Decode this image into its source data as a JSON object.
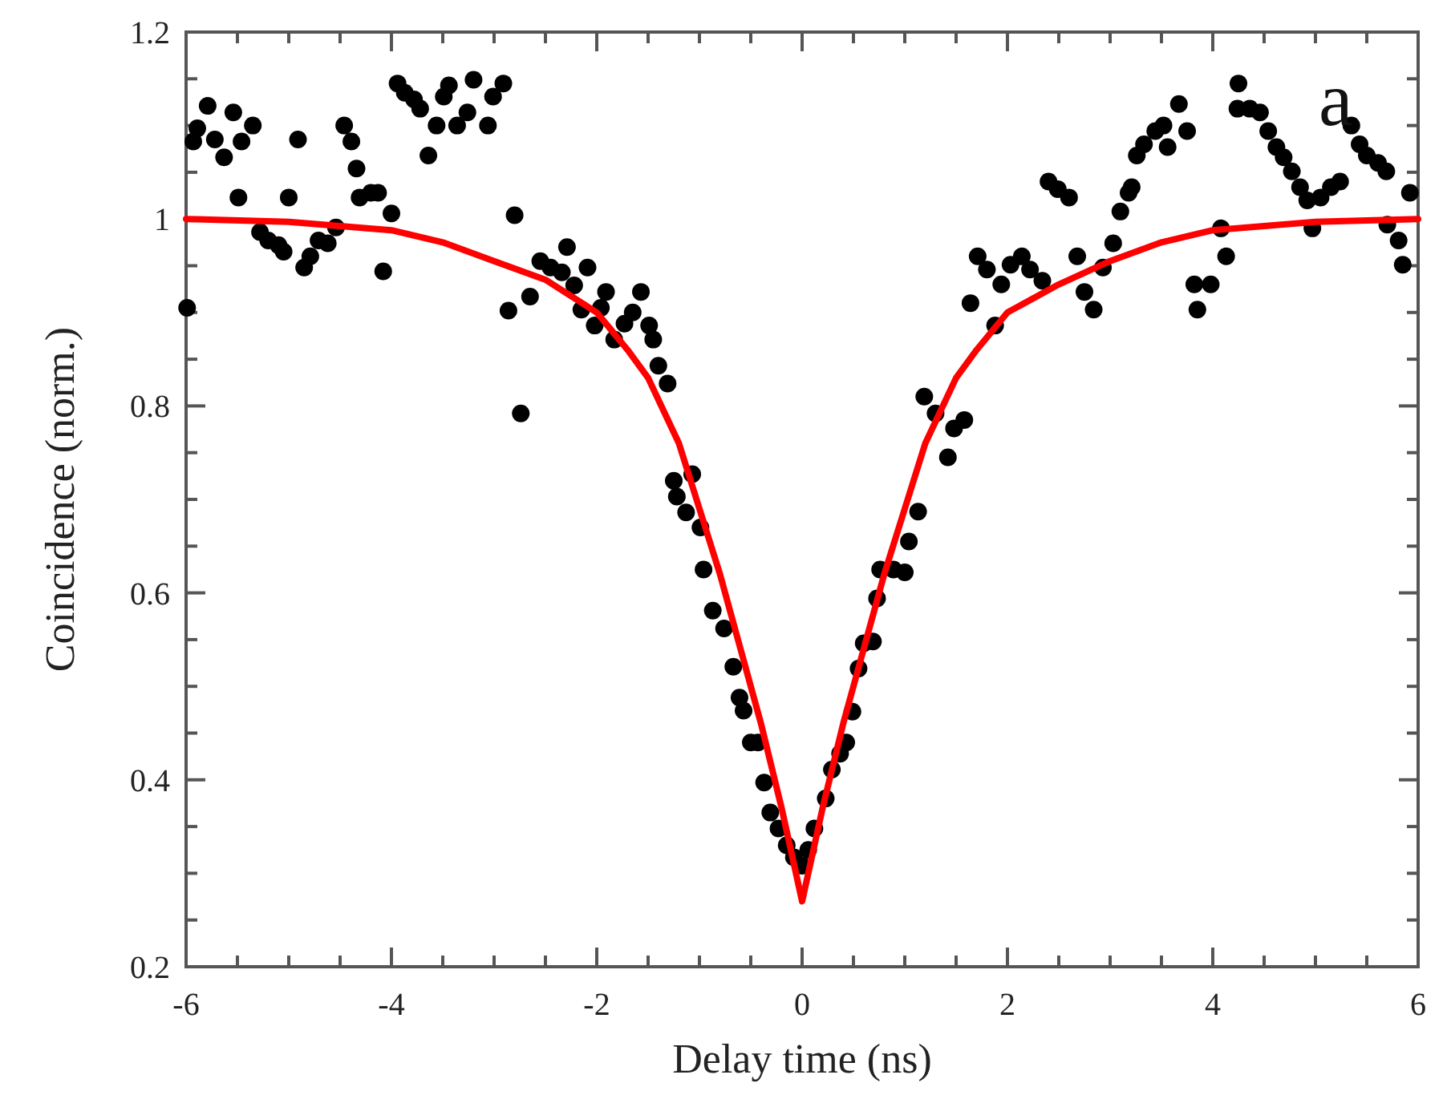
{
  "chart_data": {
    "type": "scatter",
    "xlabel": "Delay time (ns)",
    "ylabel": "Coincidence (norm.)",
    "xlim": [
      -6,
      6
    ],
    "xticks": [
      -6,
      -4,
      -2,
      0,
      2,
      4,
      6
    ],
    "ylim": [
      0.2,
      1.2
    ],
    "yticks": [
      0.2,
      0.4,
      0.6,
      0.8,
      1,
      1.2
    ],
    "grid": false,
    "marker": "circle",
    "annotations": [
      "a"
    ],
    "series": [
      {
        "color": "#000000",
        "x": [
          -5.99,
          -5.89,
          -5.93,
          -5.79,
          -5.72,
          -5.63,
          -5.54,
          -5.46,
          -5.35,
          -5.49,
          -5.28,
          -5.2,
          -5.1,
          -5.05,
          -5.0,
          -4.91,
          -4.85,
          -4.79,
          -4.71,
          -4.62,
          -4.54,
          -4.46,
          -4.39,
          -4.34,
          -4.31,
          -4.2,
          -4.13,
          -4.0,
          -4.08,
          -3.94,
          -3.87,
          -3.78,
          -3.72,
          -3.64,
          -3.56,
          -3.49,
          -3.44,
          -3.36,
          -3.26,
          -3.2,
          -3.06,
          -3.01,
          -2.91,
          -2.8,
          -2.86,
          -2.74,
          -2.65,
          -2.55,
          -2.45,
          -2.34,
          -2.29,
          -2.22,
          -2.15,
          -2.09,
          -2.02,
          -1.96,
          -1.91,
          -1.83,
          -1.73,
          -1.65,
          -1.57,
          -1.49,
          -1.45,
          -1.4,
          -1.31,
          -1.25,
          -1.07,
          -1.22,
          -1.13,
          -0.99,
          -0.96,
          -0.87,
          -0.76,
          -0.67,
          -0.61,
          -0.57,
          -0.5,
          -0.43,
          -0.37,
          -0.31,
          -0.23,
          -0.15,
          -0.08,
          0.0,
          0.06,
          0.12,
          0.23,
          0.29,
          0.37,
          0.43,
          0.49,
          0.55,
          0.6,
          0.69,
          0.73,
          0.76,
          0.89,
          1.0,
          1.04,
          1.13,
          1.19,
          1.3,
          1.42,
          1.48,
          1.58,
          1.64,
          1.71,
          1.8,
          1.88,
          1.94,
          2.03,
          2.14,
          2.22,
          2.34,
          2.4,
          2.49,
          2.6,
          2.68,
          2.75,
          2.84,
          2.93,
          3.03,
          3.1,
          3.18,
          3.21,
          3.26,
          3.33,
          3.44,
          3.52,
          3.56,
          3.67,
          3.75,
          3.85,
          3.82,
          3.98,
          4.08,
          4.13,
          4.25,
          4.24,
          4.36,
          4.46,
          4.54,
          4.62,
          4.69,
          4.77,
          4.85,
          4.92,
          4.97,
          5.05,
          5.15,
          5.24,
          5.35,
          5.43,
          5.5,
          5.61,
          5.69,
          5.92,
          5.7,
          5.81,
          5.85
        ],
        "values": [
          0.905,
          1.097,
          1.083,
          1.121,
          1.085,
          1.066,
          1.114,
          1.083,
          1.1,
          1.023,
          0.986,
          0.977,
          0.972,
          0.965,
          1.023,
          1.085,
          0.948,
          0.96,
          0.977,
          0.974,
          0.991,
          1.1,
          1.083,
          1.054,
          1.023,
          1.028,
          1.028,
          1.006,
          0.944,
          1.145,
          1.135,
          1.128,
          1.118,
          1.068,
          1.1,
          1.131,
          1.143,
          1.1,
          1.114,
          1.149,
          1.1,
          1.131,
          1.145,
          1.004,
          0.902,
          0.792,
          0.917,
          0.955,
          0.948,
          0.943,
          0.97,
          0.929,
          0.903,
          0.948,
          0.886,
          0.905,
          0.922,
          0.871,
          0.888,
          0.9,
          0.922,
          0.886,
          0.871,
          0.843,
          0.824,
          0.72,
          0.727,
          0.703,
          0.686,
          0.67,
          0.625,
          0.581,
          0.562,
          0.521,
          0.488,
          0.474,
          0.44,
          0.44,
          0.397,
          0.365,
          0.348,
          0.33,
          0.317,
          0.308,
          0.325,
          0.348,
          0.38,
          0.411,
          0.428,
          0.44,
          0.473,
          0.519,
          0.546,
          0.548,
          0.594,
          0.625,
          0.625,
          0.622,
          0.655,
          0.687,
          0.81,
          0.792,
          0.745,
          0.776,
          0.785,
          0.91,
          0.96,
          0.946,
          0.886,
          0.93,
          0.951,
          0.96,
          0.946,
          0.934,
          1.04,
          1.032,
          1.023,
          0.96,
          0.922,
          0.903,
          0.948,
          0.974,
          1.008,
          1.028,
          1.034,
          1.068,
          1.08,
          1.094,
          1.1,
          1.077,
          1.123,
          1.094,
          0.903,
          0.93,
          0.93,
          0.99,
          0.96,
          1.145,
          1.118,
          1.118,
          1.114,
          1.094,
          1.077,
          1.066,
          1.051,
          1.034,
          1.02,
          0.99,
          1.023,
          1.034,
          1.04,
          1.1,
          1.08,
          1.068,
          1.06,
          1.051,
          1.028,
          0.994,
          0.977,
          0.951
        ]
      },
      {
        "type": "line",
        "color": "#ff0000",
        "marker": "none",
        "line_style": "solid",
        "x": [
          -6,
          -5,
          -4,
          -3.5,
          -3,
          -2.5,
          -2,
          -1.7,
          -1.5,
          -1.2,
          -1,
          -0.8,
          -0.6,
          -0.4,
          -0.2,
          0,
          0.2,
          0.4,
          0.6,
          0.8,
          1,
          1.2,
          1.5,
          1.7,
          2,
          2.5,
          3,
          3.5,
          4,
          5,
          6
        ],
        "values": [
          1.0,
          0.997,
          0.988,
          0.975,
          0.955,
          0.935,
          0.9,
          0.86,
          0.83,
          0.76,
          0.69,
          0.62,
          0.54,
          0.46,
          0.37,
          0.27,
          0.37,
          0.46,
          0.54,
          0.62,
          0.69,
          0.76,
          0.83,
          0.86,
          0.9,
          0.93,
          0.955,
          0.975,
          0.988,
          0.997,
          1.0
        ]
      }
    ]
  }
}
